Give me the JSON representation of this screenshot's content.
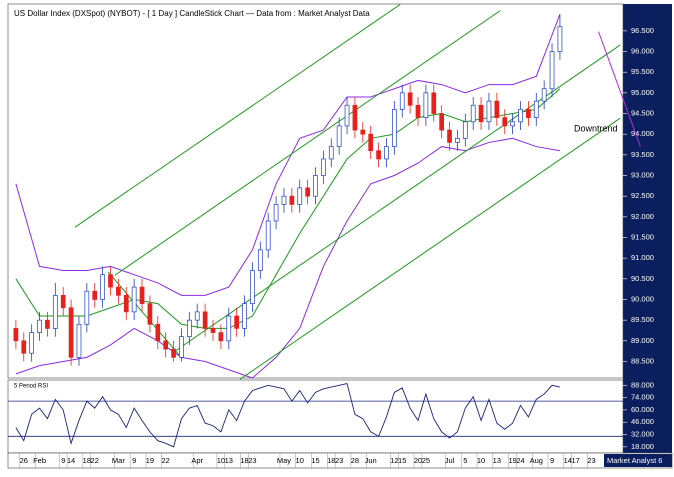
{
  "chart_data": [
    {
      "type": "candlestick",
      "title": "US Dollar Index (DXSpot) (NYBOT) -  [ 1 Day ] CandleStick Chart — Data from : Market Analyst Data",
      "x": [
        0,
        1,
        2,
        3,
        4,
        5,
        6,
        7,
        8,
        9,
        10,
        11,
        12,
        13,
        14,
        15,
        16,
        17,
        18,
        19,
        20,
        21,
        22,
        23,
        24,
        25,
        26,
        27,
        28,
        29,
        30,
        31,
        32,
        33,
        34,
        35,
        36,
        37,
        38,
        39,
        40,
        41,
        42,
        43,
        44,
        45,
        46,
        47,
        48,
        49,
        50,
        51,
        52,
        53,
        54,
        55,
        56,
        57,
        58,
        59,
        60,
        61,
        62,
        63,
        64,
        65,
        66,
        67,
        68,
        69
      ],
      "open": [
        89.3,
        89.0,
        88.7,
        89.2,
        89.5,
        89.3,
        90.1,
        89.8,
        88.6,
        89.4,
        90.2,
        90.0,
        90.6,
        90.3,
        90.1,
        89.7,
        90.3,
        89.9,
        89.4,
        89.0,
        88.8,
        88.6,
        89.1,
        89.5,
        89.7,
        89.3,
        89.2,
        89.0,
        89.6,
        89.3,
        89.9,
        90.7,
        91.2,
        91.9,
        92.3,
        92.5,
        92.3,
        92.7,
        92.5,
        93.0,
        93.4,
        93.7,
        94.2,
        94.7,
        94.1,
        94.0,
        93.6,
        93.4,
        93.7,
        94.6,
        95.0,
        94.7,
        94.4,
        95.0,
        94.5,
        94.1,
        93.8,
        93.9,
        94.3,
        94.7,
        94.3,
        94.8,
        94.4,
        94.2,
        94.3,
        94.6,
        94.4,
        94.8,
        95.1,
        96.0
      ],
      "high": [
        89.5,
        89.2,
        89.4,
        89.7,
        89.7,
        90.4,
        90.3,
        90.0,
        89.6,
        90.4,
        90.4,
        90.8,
        90.8,
        90.5,
        90.3,
        90.5,
        90.5,
        90.1,
        89.6,
        89.2,
        89.0,
        89.3,
        89.7,
        89.9,
        89.9,
        89.5,
        89.4,
        89.8,
        89.8,
        90.1,
        90.9,
        91.4,
        92.1,
        92.5,
        92.7,
        92.7,
        92.9,
        92.9,
        93.2,
        93.6,
        93.9,
        94.4,
        94.9,
        94.9,
        94.3,
        94.2,
        93.8,
        93.9,
        94.8,
        95.2,
        95.2,
        94.9,
        95.2,
        95.2,
        94.7,
        94.3,
        94.1,
        94.5,
        94.9,
        94.9,
        95.0,
        95.0,
        94.6,
        94.5,
        94.8,
        94.8,
        95.0,
        95.3,
        96.2,
        96.9
      ],
      "low": [
        88.8,
        88.5,
        88.5,
        89.0,
        89.1,
        89.1,
        89.6,
        88.4,
        88.4,
        89.2,
        89.8,
        89.8,
        90.1,
        89.9,
        89.5,
        89.5,
        89.7,
        89.2,
        88.8,
        88.6,
        88.5,
        88.5,
        88.9,
        89.3,
        89.1,
        89.0,
        88.8,
        88.8,
        89.1,
        89.1,
        89.7,
        90.5,
        91.0,
        91.7,
        92.1,
        92.1,
        92.1,
        92.3,
        92.3,
        92.8,
        93.2,
        93.5,
        94.0,
        93.9,
        93.8,
        93.4,
        93.2,
        93.2,
        93.5,
        94.4,
        94.5,
        94.2,
        94.2,
        94.3,
        93.9,
        93.6,
        93.6,
        93.7,
        94.1,
        94.1,
        94.1,
        94.2,
        94.0,
        94.0,
        94.1,
        94.2,
        94.2,
        94.6,
        94.9,
        95.8
      ],
      "close": [
        89.0,
        88.7,
        89.2,
        89.5,
        89.3,
        90.1,
        89.8,
        88.6,
        89.4,
        90.2,
        90.0,
        90.6,
        90.3,
        90.1,
        89.7,
        90.3,
        89.9,
        89.4,
        89.0,
        88.8,
        88.6,
        89.1,
        89.5,
        89.7,
        89.3,
        89.2,
        89.0,
        89.6,
        89.3,
        89.9,
        90.7,
        91.2,
        91.9,
        92.3,
        92.5,
        92.3,
        92.7,
        92.5,
        93.0,
        93.4,
        93.7,
        94.2,
        94.7,
        94.1,
        94.0,
        93.6,
        93.4,
        93.7,
        94.6,
        95.0,
        94.7,
        94.4,
        95.0,
        94.5,
        94.1,
        93.8,
        93.9,
        94.3,
        94.7,
        94.3,
        94.8,
        94.4,
        94.2,
        94.3,
        94.6,
        94.4,
        94.8,
        95.1,
        96.0,
        96.6
      ],
      "up_color": "#1c3fc4",
      "down_color": "#e8201c",
      "bands": [
        {
          "color": "#8a2be2",
          "x": [
            0,
            3,
            6,
            9,
            12,
            15,
            18,
            21,
            24,
            27,
            30,
            33,
            36,
            39,
            42,
            45,
            48,
            51,
            54,
            57,
            60,
            63,
            66,
            69
          ],
          "values": [
            92.8,
            90.8,
            90.7,
            90.7,
            90.8,
            90.6,
            90.4,
            90.1,
            90.1,
            90.3,
            91.2,
            92.8,
            93.9,
            94.1,
            94.9,
            94.9,
            95.1,
            95.3,
            95.2,
            95.0,
            95.2,
            95.2,
            95.4,
            96.9
          ]
        },
        {
          "color": "#1e9a1e",
          "x": [
            0,
            3,
            6,
            9,
            12,
            15,
            18,
            21,
            24,
            27,
            30,
            33,
            36,
            39,
            42,
            45,
            48,
            51,
            54,
            57,
            60,
            63,
            66,
            69
          ],
          "values": [
            90.5,
            89.6,
            89.6,
            89.6,
            89.8,
            90.0,
            89.9,
            89.4,
            89.3,
            89.3,
            89.6,
            90.6,
            91.6,
            92.5,
            93.4,
            93.9,
            94.0,
            94.4,
            94.5,
            94.3,
            94.4,
            94.5,
            94.6,
            95.1
          ]
        },
        {
          "color": "#8a2be2",
          "x": [
            0,
            3,
            6,
            9,
            12,
            15,
            18,
            21,
            24,
            27,
            30,
            33,
            36,
            39,
            42,
            45,
            48,
            51,
            54,
            57,
            60,
            63,
            66,
            69
          ],
          "values": [
            88.2,
            88.4,
            88.5,
            88.6,
            88.9,
            89.3,
            89.0,
            88.6,
            88.5,
            88.3,
            88.1,
            88.6,
            89.3,
            90.8,
            91.9,
            92.8,
            93.0,
            93.3,
            93.7,
            93.6,
            93.8,
            93.9,
            93.7,
            93.6
          ]
        }
      ],
      "lines": [
        {
          "color": "#1e9a1e",
          "x": [
            7.5,
            48.74
          ],
          "y": [
            91.75,
            97.14
          ]
        },
        {
          "color": "#1e9a1e",
          "x": [
            12.58,
            61.43
          ],
          "y": [
            90.59,
            96.99
          ]
        },
        {
          "color": "#1e9a1e",
          "x": [
            20.19,
            76.66
          ],
          "y": [
            88.75,
            96.16
          ]
        },
        {
          "color": "#1e9a1e",
          "x": [
            28.44,
            76.66
          ],
          "y": [
            88.07,
            94.39
          ]
        },
        {
          "color": "#1e9a1e",
          "x": [
            11.69,
            20.82
          ],
          "y": [
            90.67,
            88.63
          ]
        },
        {
          "color": "#b02fd8",
          "x": [
            73.9,
            79.2
          ],
          "y": [
            96.48,
            93.7
          ]
        }
      ],
      "annotation": "Downtrend",
      "footer": "Market Analyst 6",
      "xlim": [
        -1,
        77
      ],
      "ylim": [
        88.1,
        97.15
      ],
      "yticks": [
        {
          "value": 88.5,
          "label": "88.500"
        },
        {
          "value": 89,
          "label": "89.000"
        },
        {
          "value": 89.5,
          "label": "89.500"
        },
        {
          "value": 90,
          "label": "90.000"
        },
        {
          "value": 90.5,
          "label": "90.500"
        },
        {
          "value": 91,
          "label": "91.000"
        },
        {
          "value": 91.5,
          "label": "91.500"
        },
        {
          "value": 92,
          "label": "92.000"
        },
        {
          "value": 92.5,
          "label": "92.500"
        },
        {
          "value": 93,
          "label": "93.000"
        },
        {
          "value": 93.5,
          "label": "93.500"
        },
        {
          "value": 94,
          "label": "94.000"
        },
        {
          "value": 94.5,
          "label": "94.500"
        },
        {
          "value": 95,
          "label": "95.000"
        },
        {
          "value": 95.5,
          "label": "95.500"
        },
        {
          "value": 96,
          "label": "96.000"
        },
        {
          "value": 96.5,
          "label": "96.500"
        }
      ],
      "xticks": [
        {
          "value": 1,
          "label": "26"
        },
        {
          "value": 3,
          "label": "Feb"
        },
        {
          "value": 6,
          "label": "9"
        },
        {
          "value": 7,
          "label": "14"
        },
        {
          "value": 9,
          "label": "18"
        },
        {
          "value": 10,
          "label": "22"
        },
        {
          "value": 13,
          "label": "Mar"
        },
        {
          "value": 15,
          "label": "9"
        },
        {
          "value": 17,
          "label": "19"
        },
        {
          "value": 19,
          "label": "22"
        },
        {
          "value": 23,
          "label": "Apr"
        },
        {
          "value": 26,
          "label": "10"
        },
        {
          "value": 27,
          "label": "13"
        },
        {
          "value": 29,
          "label": "18"
        },
        {
          "value": 30,
          "label": "23"
        },
        {
          "value": 34,
          "label": "May"
        },
        {
          "value": 36,
          "label": "10"
        },
        {
          "value": 38,
          "label": "15"
        },
        {
          "value": 40,
          "label": "18"
        },
        {
          "value": 41,
          "label": "23"
        },
        {
          "value": 43,
          "label": "28"
        },
        {
          "value": 45,
          "label": "Jun"
        },
        {
          "value": 48,
          "label": "12"
        },
        {
          "value": 49,
          "label": "15"
        },
        {
          "value": 51,
          "label": "20"
        },
        {
          "value": 52,
          "label": "25"
        },
        {
          "value": 55,
          "label": "Jul"
        },
        {
          "value": 57,
          "label": "5"
        },
        {
          "value": 59,
          "label": "10"
        },
        {
          "value": 61,
          "label": "13"
        },
        {
          "value": 63,
          "label": "19"
        },
        {
          "value": 64,
          "label": "24"
        },
        {
          "value": 66,
          "label": "Aug"
        },
        {
          "value": 68,
          "label": "9"
        },
        {
          "value": 70,
          "label": "14"
        },
        {
          "value": 71,
          "label": "17"
        },
        {
          "value": 73,
          "label": "23"
        }
      ]
    },
    {
      "type": "line",
      "title": "5 Period RSI",
      "color": "#1a237e",
      "values": [
        40,
        25,
        55,
        62,
        50,
        72,
        60,
        22,
        48,
        70,
        62,
        75,
        60,
        55,
        40,
        62,
        48,
        35,
        25,
        22,
        18,
        50,
        62,
        65,
        45,
        42,
        35,
        60,
        48,
        70,
        82,
        85,
        88,
        86,
        84,
        70,
        82,
        68,
        80,
        84,
        86,
        88,
        90,
        55,
        50,
        35,
        30,
        52,
        80,
        85,
        62,
        48,
        78,
        50,
        35,
        28,
        35,
        62,
        75,
        48,
        72,
        45,
        38,
        45,
        65,
        52,
        72,
        78,
        88,
        86
      ],
      "levels": [
        70,
        30
      ],
      "ylim": [
        11,
        94
      ],
      "yticks": [
        {
          "value": 18,
          "label": "18.000"
        },
        {
          "value": 32,
          "label": "32.000"
        },
        {
          "value": 46,
          "label": "46.000"
        },
        {
          "value": 60,
          "label": "60.000"
        },
        {
          "value": 74,
          "label": "74.000"
        },
        {
          "value": 88,
          "label": "88.000"
        }
      ]
    }
  ]
}
